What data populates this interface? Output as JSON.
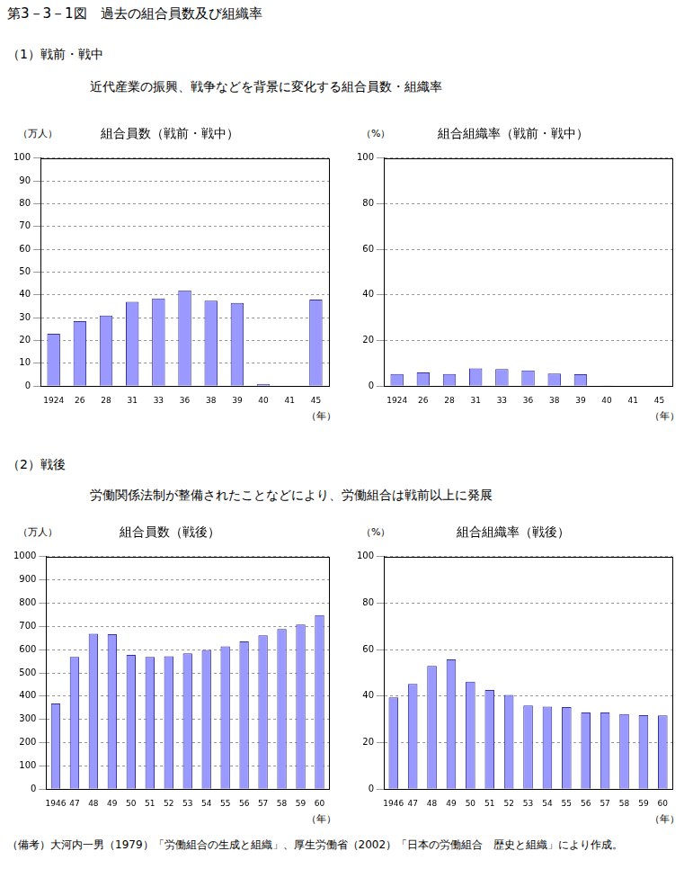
{
  "figure_title": "第3－3－1図　過去の組合員数及び組織率",
  "sections": [
    {
      "heading": "（1）戦前・戦中",
      "subtitle": "近代産業の振興、戦争などを背景に変化する組合員数・組織率"
    },
    {
      "heading": "（2）戦後",
      "subtitle": "労働関係法制が整備されたことなどにより、労働組合は戦前以上に発展"
    }
  ],
  "note": "（備考）大河内一男（1979）「労働組合の生成と組織」、厚生労働省（2002）「日本の労働組合　歴史と組織」により作成。",
  "chart_data": [
    {
      "type": "bar",
      "title": "組合員数（戦前・戦中）",
      "ylabel": "（万人）",
      "xlabel": "（年）",
      "categories": [
        "1924",
        "26",
        "28",
        "31",
        "33",
        "36",
        "38",
        "39",
        "40",
        "41",
        "45"
      ],
      "values": [
        23,
        28.5,
        31,
        37,
        38.5,
        42,
        37.5,
        36.5,
        1,
        0,
        38
      ],
      "color": "#9999ff",
      "ylim": [
        0,
        100
      ],
      "yticks": [
        0,
        10,
        20,
        30,
        40,
        50,
        60,
        70,
        80,
        90,
        100
      ],
      "grid": true
    },
    {
      "type": "bar",
      "title": "組合組織率（戦前・戦中）",
      "ylabel": "（%）",
      "xlabel": "（年）",
      "categories": [
        "1924",
        "26",
        "28",
        "31",
        "33",
        "36",
        "38",
        "39",
        "40",
        "41",
        "45"
      ],
      "values": [
        5.3,
        6,
        5.3,
        7.8,
        7.5,
        6.9,
        5.5,
        5.2,
        0.1,
        0,
        0.3
      ],
      "color": "#9999ff",
      "ylim": [
        0,
        100
      ],
      "yticks": [
        0,
        20,
        40,
        60,
        80,
        100
      ],
      "grid": true
    },
    {
      "type": "bar",
      "title": "組合員数（戦後）",
      "ylabel": "（万人）",
      "xlabel": "（年）",
      "categories": [
        "1946",
        "47",
        "48",
        "49",
        "50",
        "51",
        "52",
        "53",
        "54",
        "55",
        "56",
        "57",
        "58",
        "59",
        "60"
      ],
      "values": [
        368,
        569,
        668,
        666,
        577,
        569,
        572,
        584,
        599,
        614,
        635,
        662,
        689,
        708,
        749
      ],
      "color": "#9999ff",
      "ylim": [
        0,
        1000
      ],
      "yticks": [
        0,
        100,
        200,
        300,
        400,
        500,
        600,
        700,
        800,
        900,
        1000
      ],
      "grid": true
    },
    {
      "type": "bar",
      "title": "組合組織率（戦後）",
      "ylabel": "（%）",
      "xlabel": "（年）",
      "categories": [
        "1946",
        "47",
        "48",
        "49",
        "50",
        "51",
        "52",
        "53",
        "54",
        "55",
        "56",
        "57",
        "58",
        "59",
        "60"
      ],
      "values": [
        39.5,
        45.3,
        53,
        55.8,
        46.2,
        42.6,
        40.5,
        36,
        35.5,
        35.3,
        33,
        33,
        32.3,
        31.8,
        31.7
      ],
      "color": "#9999ff",
      "ylim": [
        0,
        100
      ],
      "yticks": [
        0,
        20,
        40,
        60,
        80,
        100
      ],
      "grid": true
    }
  ]
}
